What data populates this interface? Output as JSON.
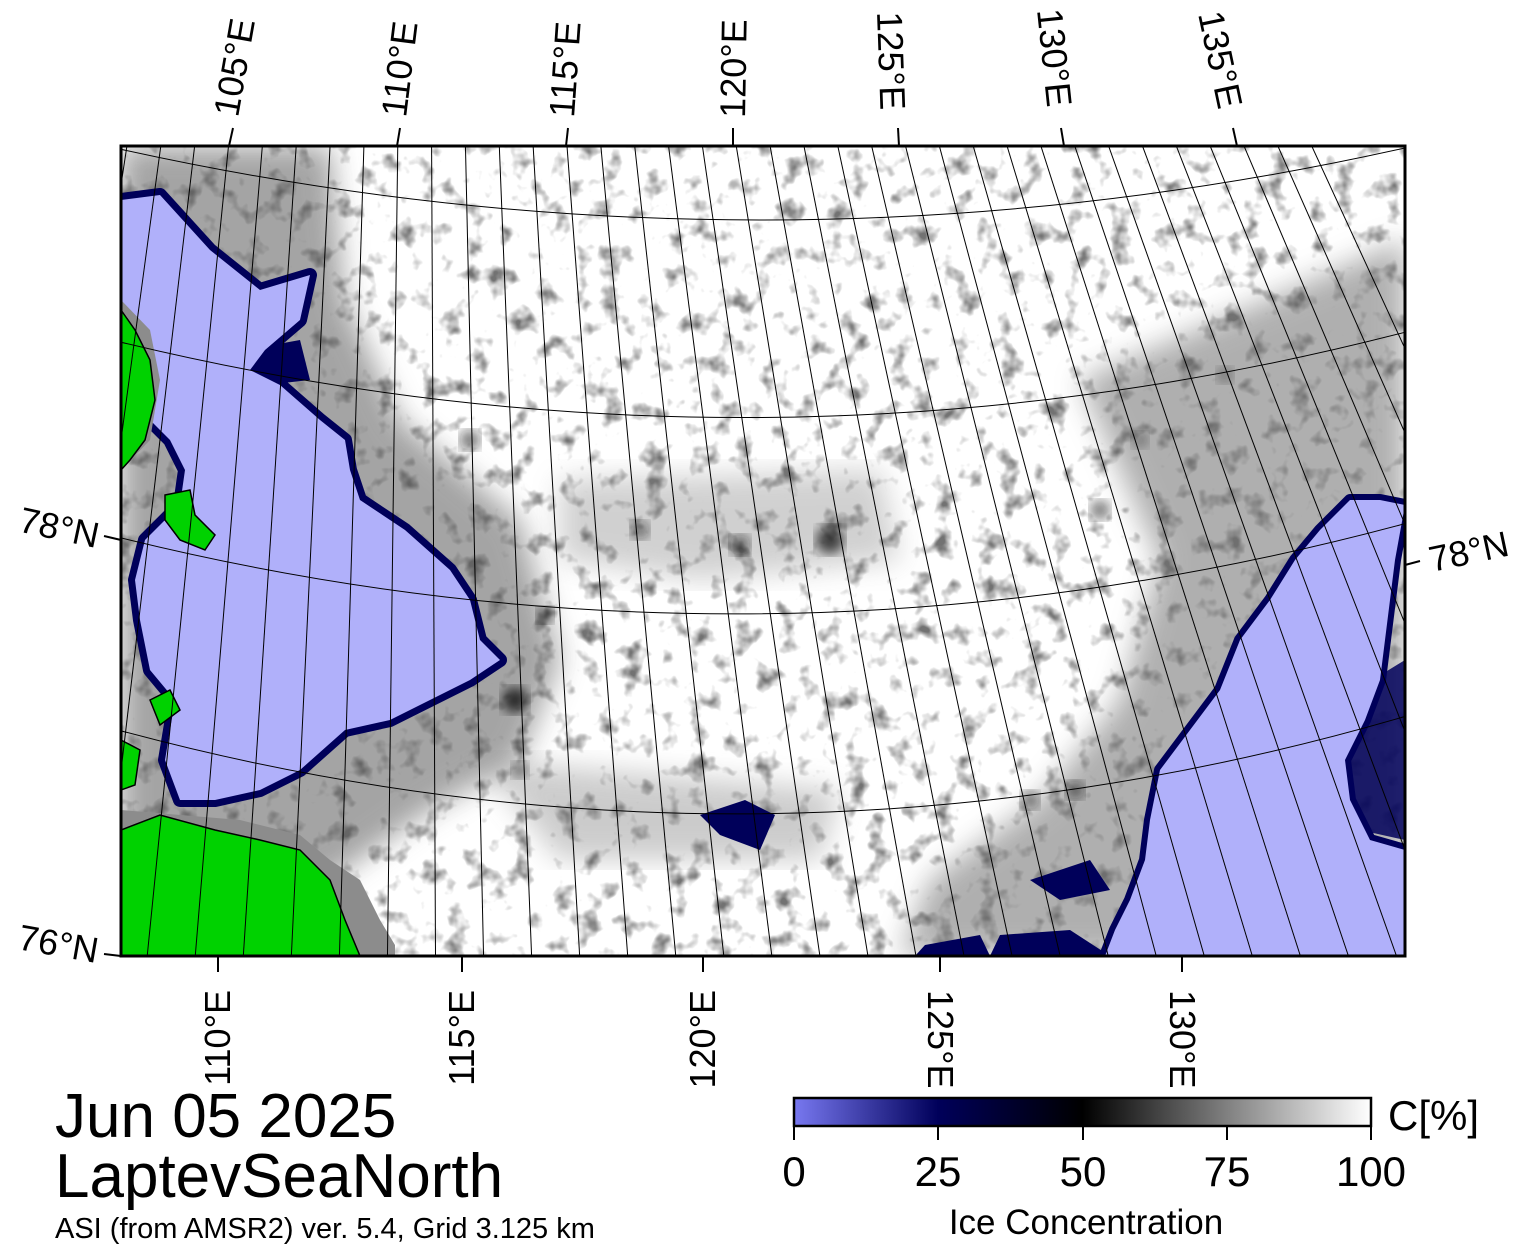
{
  "map": {
    "region_name": "LaptevSeaNorth",
    "date": "Jun 05 2025",
    "product": "ASI (from AMSR2) ver. 5.4,  Grid 3.125 km",
    "top_lon_labels": [
      "105°E",
      "110°E",
      "115°E",
      "120°E",
      "125°E",
      "130°E",
      "135°E"
    ],
    "bottom_lon_labels": [
      "110°E",
      "115°E",
      "120°E",
      "125°E",
      "130°E"
    ],
    "lat_labels_left": [
      "78°N",
      "76°N"
    ],
    "lat_labels_right": [
      "78°N"
    ],
    "colors": {
      "open_water": "#b0b0fa",
      "land": "#00d200",
      "coast_mask": "#8c8c8c",
      "frame": "#000000"
    }
  },
  "colorbar": {
    "label": "Ice Concentration",
    "unit": "C[%]",
    "ticks": [
      "0",
      "25",
      "50",
      "75",
      "100"
    ],
    "stops": [
      {
        "value": 0,
        "color": "#7878f0"
      },
      {
        "value": 25,
        "color": "#00005a"
      },
      {
        "value": 50,
        "color": "#000000"
      },
      {
        "value": 75,
        "color": "#808080"
      },
      {
        "value": 100,
        "color": "#ffffff"
      }
    ]
  }
}
